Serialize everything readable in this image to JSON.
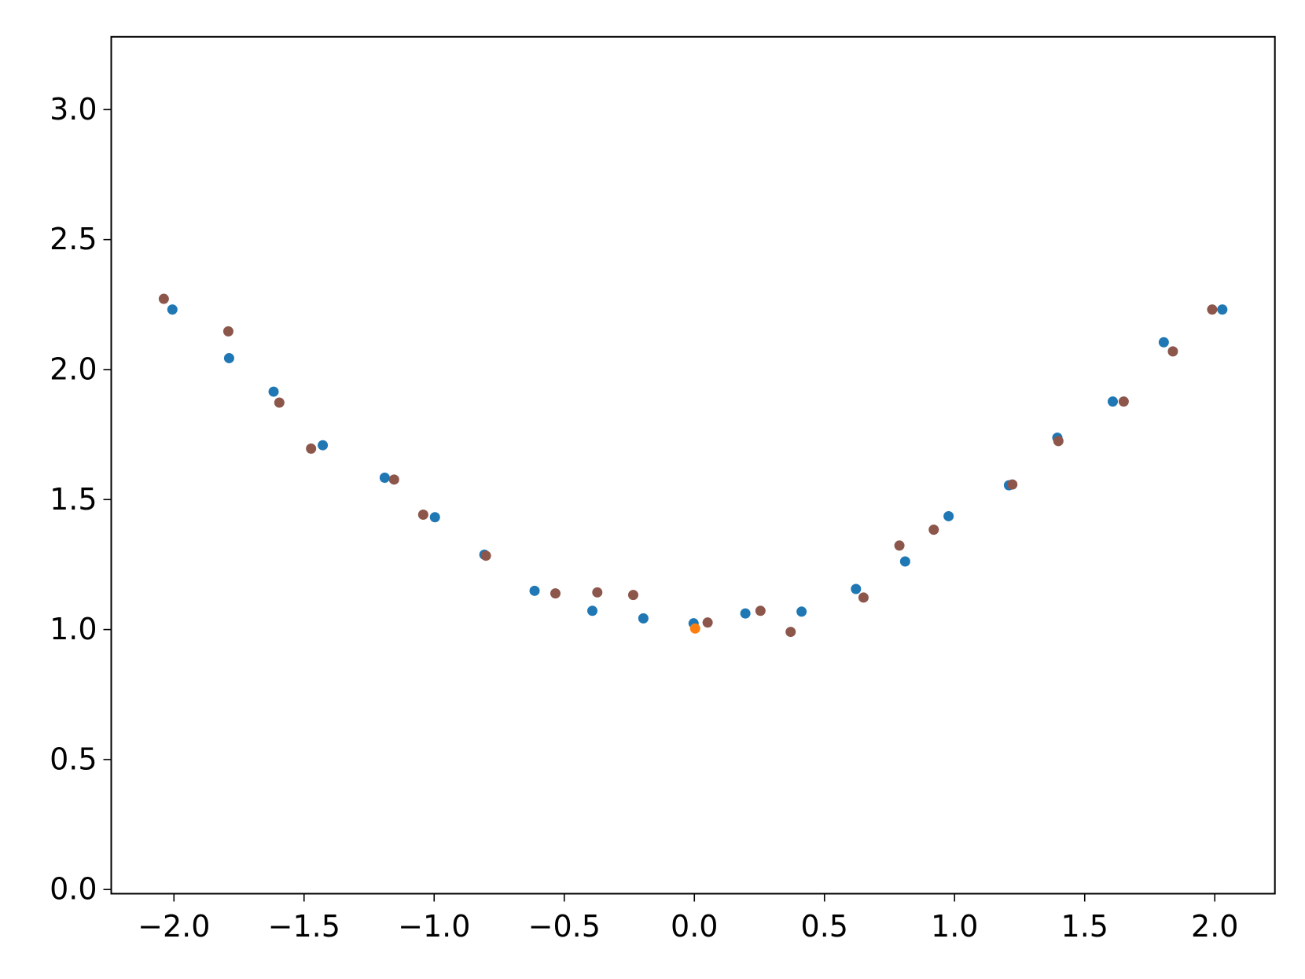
{
  "chart_data": {
    "type": "scatter",
    "xlim": [
      -2.241,
      2.231
    ],
    "ylim": [
      -0.016,
      3.28
    ],
    "xticks": [
      {
        "value": -2,
        "label": "−2.0"
      },
      {
        "value": -1.5,
        "label": "−1.5"
      },
      {
        "value": -1,
        "label": "−1.0"
      },
      {
        "value": -0.5,
        "label": "−0.5"
      },
      {
        "value": 0,
        "label": "0.0"
      },
      {
        "value": 0.5,
        "label": "0.5"
      },
      {
        "value": 1,
        "label": "1.0"
      },
      {
        "value": 1.5,
        "label": "1.5"
      },
      {
        "value": 2,
        "label": "2.0"
      }
    ],
    "yticks": [
      {
        "value": 0,
        "label": "0.0"
      },
      {
        "value": 0.5,
        "label": "0.5"
      },
      {
        "value": 1,
        "label": "1.0"
      },
      {
        "value": 1.5,
        "label": "1.5"
      },
      {
        "value": 2,
        "label": "2.0"
      },
      {
        "value": 2.5,
        "label": "2.5"
      },
      {
        "value": 3,
        "label": "3.0"
      }
    ],
    "grid": false,
    "series": [
      {
        "color": "#1f77b4",
        "x": [
          -2.006,
          -1.788,
          -1.617,
          -1.428,
          -1.19,
          -0.997,
          -0.807,
          -0.614,
          -0.392,
          -0.196,
          -0.003,
          0.196,
          0.412,
          0.621,
          0.81,
          0.977,
          1.209,
          1.395,
          1.608,
          1.804,
          2.029
        ],
        "values": [
          2.231,
          2.044,
          1.915,
          1.709,
          1.584,
          1.432,
          1.288,
          1.149,
          1.072,
          1.043,
          1.024,
          1.062,
          1.069,
          1.156,
          1.262,
          1.436,
          1.555,
          1.738,
          1.877,
          2.105,
          2.231
        ]
      },
      {
        "color": "#8c564b",
        "x": [
          -2.039,
          -1.791,
          -1.595,
          -1.473,
          -1.154,
          -1.042,
          -0.801,
          -0.534,
          -0.373,
          -0.235,
          0.051,
          0.254,
          0.37,
          0.65,
          0.788,
          0.92,
          1.222,
          1.399,
          1.65,
          1.839,
          1.99
        ],
        "values": [
          2.272,
          2.147,
          1.873,
          1.696,
          1.577,
          1.442,
          1.284,
          1.139,
          1.143,
          1.133,
          1.027,
          1.072,
          0.991,
          1.123,
          1.323,
          1.384,
          1.558,
          1.725,
          1.877,
          2.07,
          2.231
        ]
      },
      {
        "color": "#ff7f0e",
        "x": [
          0.003
        ],
        "values": [
          1.004
        ]
      }
    ]
  }
}
